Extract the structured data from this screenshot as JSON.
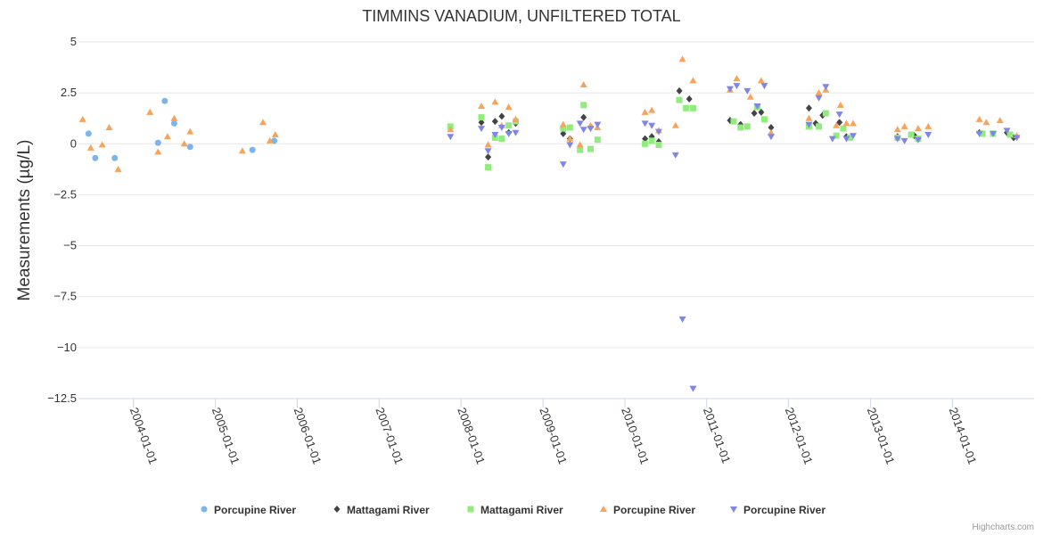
{
  "credits": "Highcharts.com",
  "chart_data": {
    "type": "scatter",
    "title": "TIMMINS VANADIUM, UNFILTERED TOTAL",
    "ylabel": "Measurements (µg/L)",
    "xlabel": "",
    "ylim": [
      -12.5,
      5
    ],
    "yticks": [
      "5",
      "2.5",
      "0",
      "−2.5",
      "−5",
      "−7.5",
      "−10",
      "−12.5"
    ],
    "ytick_values": [
      5,
      2.5,
      0,
      -2.5,
      -5,
      -7.5,
      -10,
      -12.5
    ],
    "xlim": [
      "2003-05-01",
      "2014-12-31"
    ],
    "xticks": [
      "2004-01-01",
      "2005-01-01",
      "2006-01-01",
      "2007-01-01",
      "2008-01-01",
      "2009-01-01",
      "2010-01-01",
      "2011-01-01",
      "2012-01-01",
      "2013-01-01",
      "2014-01-01"
    ],
    "grid": true,
    "legend_position": "bottom",
    "series": [
      {
        "name": "Porcupine River",
        "color": "#7cb5ec",
        "marker": "circle",
        "points": [
          [
            "2003-06-15",
            0.5
          ],
          [
            "2003-07-15",
            -0.7
          ],
          [
            "2003-10-10",
            -0.7
          ],
          [
            "2004-04-20",
            0.05
          ],
          [
            "2004-05-20",
            2.1
          ],
          [
            "2004-07-01",
            1.0
          ],
          [
            "2004-09-10",
            -0.15
          ],
          [
            "2005-06-15",
            -0.3
          ],
          [
            "2005-09-20",
            0.15
          ]
        ]
      },
      {
        "name": "Mattagami River",
        "color": "#434348",
        "marker": "diamond",
        "points": [
          [
            "2008-04-01",
            1.05
          ],
          [
            "2008-05-01",
            -0.65
          ],
          [
            "2008-06-01",
            1.1
          ],
          [
            "2008-07-01",
            1.35
          ],
          [
            "2008-08-01",
            0.55
          ],
          [
            "2008-09-01",
            1.0
          ],
          [
            "2009-04-01",
            0.5
          ],
          [
            "2009-05-01",
            0.25
          ],
          [
            "2009-07-01",
            1.3
          ],
          [
            "2010-04-01",
            0.25
          ],
          [
            "2010-05-01",
            0.35
          ],
          [
            "2010-06-01",
            0.1
          ],
          [
            "2010-09-01",
            2.6
          ],
          [
            "2010-10-15",
            2.2
          ],
          [
            "2011-04-15",
            1.15
          ],
          [
            "2011-06-01",
            0.95
          ],
          [
            "2011-08-01",
            1.5
          ],
          [
            "2011-09-01",
            1.55
          ],
          [
            "2011-10-15",
            0.8
          ],
          [
            "2012-04-01",
            1.75
          ],
          [
            "2012-05-01",
            1.0
          ],
          [
            "2012-06-01",
            1.4
          ],
          [
            "2012-08-15",
            1.05
          ],
          [
            "2012-09-15",
            0.35
          ],
          [
            "2013-05-01",
            0.35
          ],
          [
            "2013-07-15",
            0.4
          ],
          [
            "2014-05-01",
            0.55
          ],
          [
            "2014-09-01",
            0.55
          ],
          [
            "2014-10-01",
            0.3
          ]
        ]
      },
      {
        "name": "Mattagami River",
        "color": "#90ed7d",
        "marker": "square",
        "points": [
          [
            "2007-11-15",
            0.85
          ],
          [
            "2008-04-01",
            1.3
          ],
          [
            "2008-05-01",
            -1.15
          ],
          [
            "2008-06-01",
            0.3
          ],
          [
            "2008-07-01",
            0.25
          ],
          [
            "2008-08-01",
            0.9
          ],
          [
            "2008-09-01",
            1.1
          ],
          [
            "2009-04-01",
            0.75
          ],
          [
            "2009-05-01",
            0.8
          ],
          [
            "2009-06-15",
            -0.3
          ],
          [
            "2009-07-01",
            1.9
          ],
          [
            "2009-08-01",
            -0.25
          ],
          [
            "2009-09-01",
            0.2
          ],
          [
            "2010-04-01",
            0.0
          ],
          [
            "2010-05-01",
            0.15
          ],
          [
            "2010-06-01",
            -0.05
          ],
          [
            "2010-09-01",
            2.15
          ],
          [
            "2010-10-01",
            1.75
          ],
          [
            "2010-11-01",
            1.75
          ],
          [
            "2011-05-01",
            1.1
          ],
          [
            "2011-06-01",
            0.8
          ],
          [
            "2011-07-01",
            0.85
          ],
          [
            "2011-08-15",
            1.8
          ],
          [
            "2011-09-15",
            1.2
          ],
          [
            "2012-04-01",
            0.85
          ],
          [
            "2012-05-15",
            0.85
          ],
          [
            "2012-06-15",
            1.5
          ],
          [
            "2012-08-01",
            0.4
          ],
          [
            "2012-09-01",
            0.75
          ],
          [
            "2012-10-01",
            0.3
          ],
          [
            "2013-05-01",
            0.3
          ],
          [
            "2013-07-01",
            0.45
          ],
          [
            "2013-08-01",
            0.25
          ],
          [
            "2014-05-15",
            0.5
          ],
          [
            "2014-07-01",
            0.5
          ],
          [
            "2014-09-15",
            0.45
          ]
        ]
      },
      {
        "name": "Porcupine River",
        "color": "#f7a35c",
        "marker": "triangle",
        "points": [
          [
            "2003-05-20",
            1.2
          ],
          [
            "2003-06-25",
            -0.2
          ],
          [
            "2003-08-15",
            -0.05
          ],
          [
            "2003-09-15",
            0.8
          ],
          [
            "2003-10-25",
            -1.25
          ],
          [
            "2004-03-15",
            1.55
          ],
          [
            "2004-04-20",
            -0.4
          ],
          [
            "2004-06-01",
            0.35
          ],
          [
            "2004-07-01",
            1.25
          ],
          [
            "2004-08-15",
            0.0
          ],
          [
            "2004-09-10",
            0.6
          ],
          [
            "2005-05-01",
            -0.35
          ],
          [
            "2005-08-01",
            1.05
          ],
          [
            "2005-09-01",
            0.15
          ],
          [
            "2005-09-25",
            0.45
          ],
          [
            "2007-11-15",
            0.7
          ],
          [
            "2008-04-01",
            1.85
          ],
          [
            "2008-05-01",
            -0.05
          ],
          [
            "2008-06-01",
            2.05
          ],
          [
            "2008-07-01",
            0.9
          ],
          [
            "2008-08-01",
            1.8
          ],
          [
            "2008-09-01",
            1.2
          ],
          [
            "2009-04-01",
            0.95
          ],
          [
            "2009-05-01",
            0.25
          ],
          [
            "2009-06-15",
            -0.05
          ],
          [
            "2009-07-01",
            2.9
          ],
          [
            "2009-08-01",
            0.9
          ],
          [
            "2009-09-01",
            0.8
          ],
          [
            "2010-04-01",
            1.55
          ],
          [
            "2010-05-01",
            1.65
          ],
          [
            "2010-06-01",
            0.65
          ],
          [
            "2010-08-15",
            0.9
          ],
          [
            "2010-09-15",
            4.15
          ],
          [
            "2010-11-01",
            3.1
          ],
          [
            "2011-04-15",
            2.65
          ],
          [
            "2011-05-15",
            3.2
          ],
          [
            "2011-07-15",
            2.3
          ],
          [
            "2011-09-01",
            3.1
          ],
          [
            "2011-10-15",
            0.55
          ],
          [
            "2012-04-01",
            1.25
          ],
          [
            "2012-05-15",
            2.5
          ],
          [
            "2012-06-15",
            2.65
          ],
          [
            "2012-08-01",
            0.9
          ],
          [
            "2012-08-20",
            1.9
          ],
          [
            "2012-09-15",
            1.0
          ],
          [
            "2012-10-15",
            1.0
          ],
          [
            "2013-05-01",
            0.7
          ],
          [
            "2013-06-01",
            0.85
          ],
          [
            "2013-08-01",
            0.75
          ],
          [
            "2013-09-15",
            0.85
          ],
          [
            "2014-05-01",
            1.2
          ],
          [
            "2014-06-01",
            1.05
          ],
          [
            "2014-08-01",
            1.15
          ],
          [
            "2014-10-15",
            0.4
          ]
        ]
      },
      {
        "name": "Porcupine River",
        "color": "#8085e9",
        "marker": "triangle-down",
        "points": [
          [
            "2007-11-15",
            0.35
          ],
          [
            "2008-04-01",
            0.75
          ],
          [
            "2008-05-01",
            -0.35
          ],
          [
            "2008-06-01",
            0.45
          ],
          [
            "2008-07-01",
            0.8
          ],
          [
            "2008-08-01",
            0.5
          ],
          [
            "2008-09-01",
            0.55
          ],
          [
            "2009-04-01",
            -1.0
          ],
          [
            "2009-05-01",
            -0.05
          ],
          [
            "2009-06-15",
            1.0
          ],
          [
            "2009-07-01",
            0.7
          ],
          [
            "2009-08-01",
            0.75
          ],
          [
            "2009-09-01",
            0.95
          ],
          [
            "2010-04-01",
            1.0
          ],
          [
            "2010-05-01",
            0.9
          ],
          [
            "2010-06-01",
            0.6
          ],
          [
            "2010-08-15",
            -0.55
          ],
          [
            "2010-09-15",
            -8.6
          ],
          [
            "2010-11-01",
            -12.0
          ],
          [
            "2011-04-15",
            2.7
          ],
          [
            "2011-05-15",
            2.85
          ],
          [
            "2011-07-01",
            2.6
          ],
          [
            "2011-08-15",
            1.85
          ],
          [
            "2011-09-15",
            2.85
          ],
          [
            "2011-10-15",
            0.35
          ],
          [
            "2012-04-01",
            0.95
          ],
          [
            "2012-05-15",
            2.25
          ],
          [
            "2012-06-15",
            2.8
          ],
          [
            "2012-07-15",
            0.25
          ],
          [
            "2012-08-15",
            1.45
          ],
          [
            "2012-09-15",
            0.25
          ],
          [
            "2012-10-15",
            0.4
          ],
          [
            "2013-05-01",
            0.25
          ],
          [
            "2013-06-01",
            0.15
          ],
          [
            "2013-08-01",
            0.2
          ],
          [
            "2013-09-15",
            0.45
          ],
          [
            "2014-05-01",
            0.5
          ],
          [
            "2014-07-01",
            0.5
          ],
          [
            "2014-09-01",
            0.65
          ],
          [
            "2014-10-15",
            0.3
          ]
        ]
      }
    ]
  }
}
